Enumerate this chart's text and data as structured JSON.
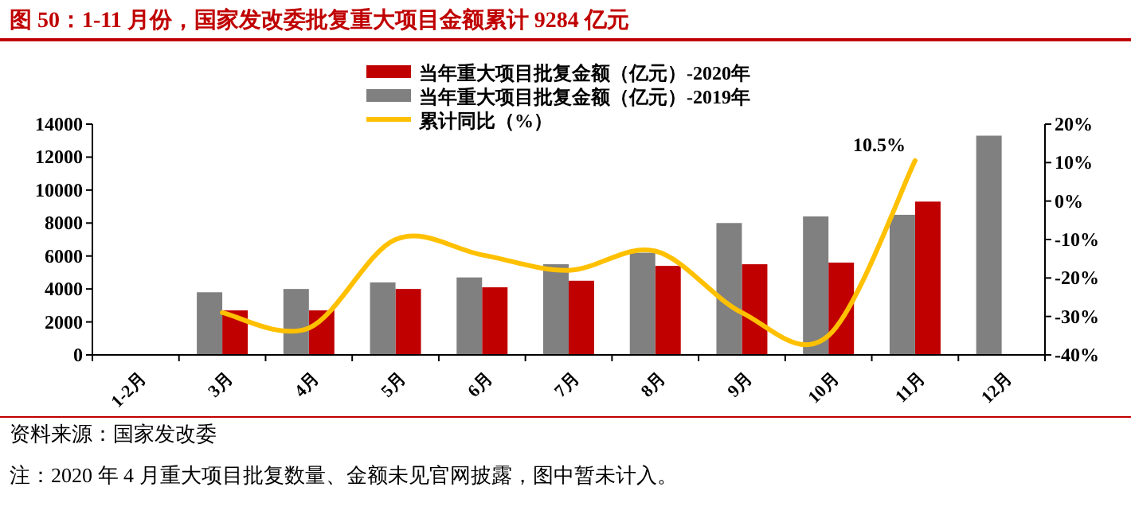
{
  "chart_data": {
    "type": "bar",
    "title": "图 50：1-11 月份，国家发改委批复重大项目金额累计 9284 亿元",
    "categories": [
      "1-2月",
      "3月",
      "4月",
      "5月",
      "6月",
      "7月",
      "8月",
      "9月",
      "10月",
      "11月",
      "12月"
    ],
    "series": [
      {
        "name": "当年重大项目批复金额（亿元）-2020年",
        "color": "#c00000",
        "values": [
          null,
          2700,
          2700,
          4000,
          4100,
          4500,
          5400,
          5500,
          5600,
          9300,
          null
        ]
      },
      {
        "name": "当年重大项目批复金额（亿元）-2019年",
        "color": "#808080",
        "values": [
          null,
          3800,
          4000,
          4400,
          4700,
          5500,
          6200,
          8000,
          8400,
          8500,
          13300
        ]
      },
      {
        "name": "累计同比（%）",
        "type": "line",
        "axis": "y2",
        "color": "#ffc000",
        "values": [
          null,
          -29,
          -33,
          -10,
          -14,
          -18,
          -13,
          -29,
          -35,
          10.5,
          null
        ]
      }
    ],
    "ylim": [
      0,
      14000
    ],
    "yticks": [
      0,
      2000,
      4000,
      6000,
      8000,
      10000,
      12000,
      14000
    ],
    "y2lim": [
      -40,
      20
    ],
    "y2ticks": [
      {
        "value": -40,
        "label": "-40%"
      },
      {
        "value": -30,
        "label": "-30%"
      },
      {
        "value": -20,
        "label": "-20%"
      },
      {
        "value": -10,
        "label": "-10%"
      },
      {
        "value": 0,
        "label": "0%"
      },
      {
        "value": 10,
        "label": "10%"
      },
      {
        "value": 20,
        "label": "20%"
      }
    ],
    "legend": "top",
    "annotations": [
      "10.5%",
      "资料来源：国家发改委",
      "注：2020 年 4 月重大项目批复数量、金额未见官网披露，图中暂未计入。"
    ]
  }
}
